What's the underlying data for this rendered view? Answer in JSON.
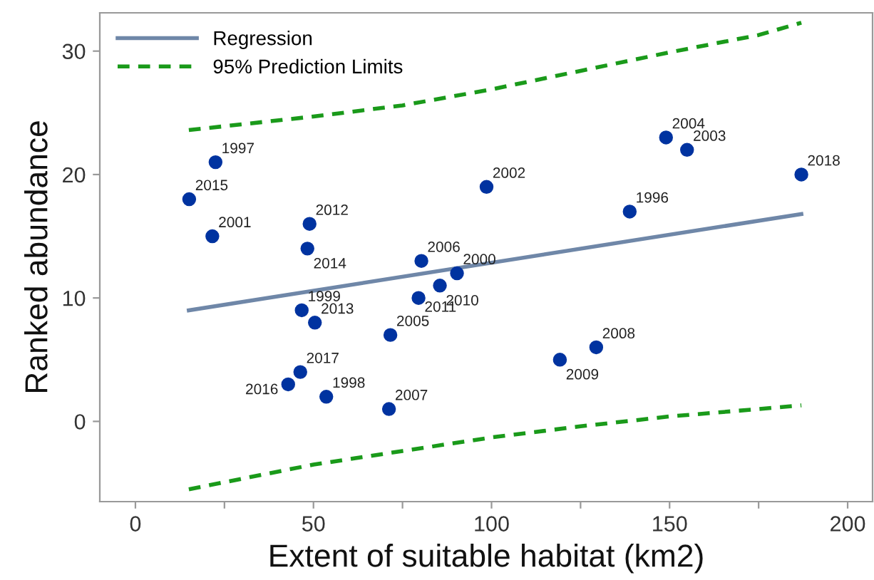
{
  "chart_data": {
    "type": "scatter",
    "xlabel": "Extent of suitable habitat (km2)",
    "ylabel": "Ranked abundance",
    "xlim": [
      -10,
      207
    ],
    "ylim": [
      -6.5,
      33.1
    ],
    "xticks": [
      0,
      {
        "value": 25,
        "label": null
      },
      50,
      {
        "value": 75,
        "label": null
      },
      100,
      {
        "value": 125,
        "label": null
      },
      150,
      {
        "value": 175,
        "label": null
      },
      200
    ],
    "yticks": [
      0,
      10,
      20,
      30
    ],
    "grid": false,
    "legend": "top left",
    "series": [
      {
        "type": "line",
        "name": "Regression",
        "color": "#6f87a8",
        "line_style": "solid",
        "marker": "none",
        "x": [
          15,
          187
        ],
        "values": [
          9.0,
          16.8
        ]
      },
      {
        "type": "line",
        "name": "95% Prediction Limits",
        "color": "#1a9a1a",
        "line_style": "dashed",
        "marker": "none",
        "x": [
          15,
          50,
          75,
          100,
          125,
          150,
          175,
          187
        ],
        "values": [
          23.6,
          24.7,
          25.6,
          26.9,
          28.4,
          29.9,
          31.3,
          32.3
        ]
      },
      {
        "type": "line",
        "color": "#1a9a1a",
        "line_style": "dashed",
        "marker": "none",
        "x": [
          15,
          50,
          75,
          100,
          125,
          150,
          175,
          187
        ],
        "values": [
          -5.5,
          -3.5,
          -2.4,
          -1.3,
          -0.4,
          0.4,
          1.0,
          1.3
        ]
      },
      {
        "color": "#0033a0",
        "marker": "circle",
        "x": [
          22.5,
          15.1,
          21.6,
          48.9,
          48.3,
          80.3,
          90.3,
          85.5,
          79.5,
          46.7,
          50.4,
          71.6,
          46.3,
          42.9,
          53.6,
          71.2,
          119.2,
          129.4,
          98.6,
          138.8,
          149,
          154.9,
          187
        ],
        "values": [
          21,
          18,
          15,
          16,
          14,
          13,
          12,
          11,
          10,
          9,
          8,
          7,
          4,
          3,
          2,
          1,
          5,
          6,
          19,
          17,
          23,
          22,
          20
        ]
      }
    ],
    "annotations": [
      {
        "text": "1997",
        "x": 22.5,
        "y": 21
      },
      {
        "text": "2015",
        "x": 15.1,
        "y": 18
      },
      {
        "text": "2001",
        "x": 21.6,
        "y": 15
      },
      {
        "text": "2012",
        "x": 48.9,
        "y": 16
      },
      {
        "text": "2014",
        "x": 48.3,
        "y": 14
      },
      {
        "text": "2006",
        "x": 80.3,
        "y": 13
      },
      {
        "text": "2000",
        "x": 90.3,
        "y": 12
      },
      {
        "text": "2010",
        "x": 85.5,
        "y": 11
      },
      {
        "text": "2011",
        "x": 79.5,
        "y": 10
      },
      {
        "text": "1999",
        "x": 46.7,
        "y": 9
      },
      {
        "text": "2013",
        "x": 50.4,
        "y": 8
      },
      {
        "text": "2005",
        "x": 71.6,
        "y": 7
      },
      {
        "text": "2017",
        "x": 46.3,
        "y": 4
      },
      {
        "text": "2016",
        "x": 42.9,
        "y": 3
      },
      {
        "text": "1998",
        "x": 53.6,
        "y": 2
      },
      {
        "text": "2007",
        "x": 71.2,
        "y": 1
      },
      {
        "text": "2009",
        "x": 119.2,
        "y": 5
      },
      {
        "text": "2008",
        "x": 129.4,
        "y": 6
      },
      {
        "text": "2002",
        "x": 98.6,
        "y": 19
      },
      {
        "text": "1996",
        "x": 138.8,
        "y": 17
      },
      {
        "text": "2004",
        "x": 149,
        "y": 23
      },
      {
        "text": "2003",
        "x": 154.9,
        "y": 22
      },
      {
        "text": "2018",
        "x": 187,
        "y": 20
      }
    ]
  }
}
